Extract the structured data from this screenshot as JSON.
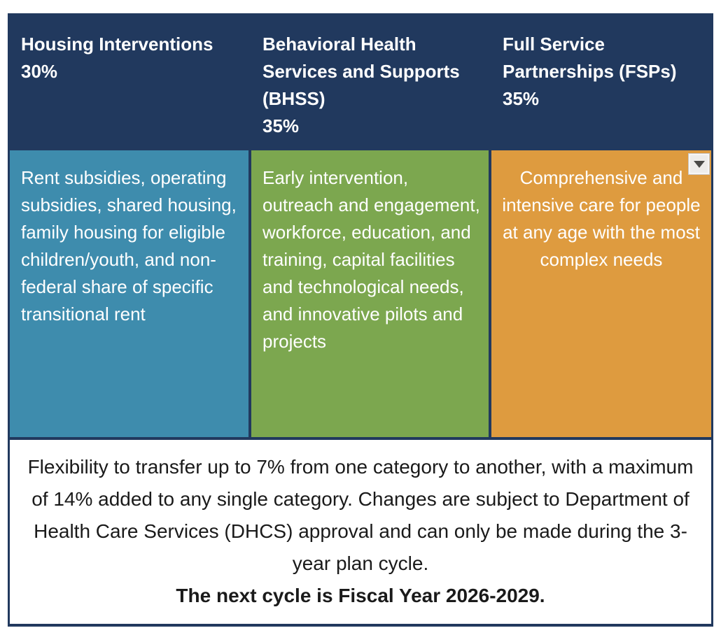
{
  "table": {
    "header_bg": "#21395E",
    "columns": [
      {
        "title": "Housing Interventions",
        "percentage": "30%",
        "description": "Rent subsidies, operating subsidies, shared housing, family housing for eligible children/youth, and non-federal share of specific transitional rent",
        "color": "#3E8CAD"
      },
      {
        "title": "Behavioral Health Services and Supports (BHSS)",
        "percentage": "35%",
        "description": "Early intervention, outreach and engagement, workforce, education, and training, capital facilities and technological needs, and innovative pilots and projects",
        "color": "#7CA74F"
      },
      {
        "title": "Full Service Partnerships (FSPs)",
        "percentage": "35%",
        "description": "Comprehensive and intensive care for people at any age with the most complex needs",
        "color": "#DE9B3F"
      }
    ],
    "note": {
      "body": "Flexibility to transfer up to 7% from one category to another, with a maximum of 14% added to any single category. Changes are subject to Department of Health Care Services (DHCS) approval and can only be made during the 3-year plan cycle.",
      "emphasis": "The next cycle is Fiscal Year 2026-2029."
    }
  },
  "colors": {
    "header_navy": "#21395E",
    "housing_teal": "#3E8CAD",
    "bhss_green": "#7CA74F",
    "fsp_orange": "#DE9B3F",
    "note_text": "#1A1A1A"
  }
}
